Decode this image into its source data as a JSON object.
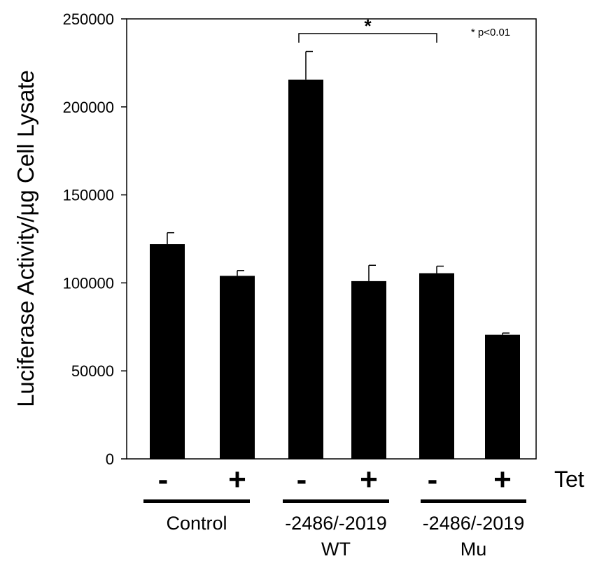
{
  "chart_data": {
    "type": "bar",
    "ylabel": "Luciferase Activity/µg Cell Lysate",
    "ylim": [
      0,
      250000
    ],
    "yticks": [
      0,
      50000,
      100000,
      150000,
      200000,
      250000
    ],
    "ytick_labels": [
      "0",
      "50000",
      "100000",
      "150000",
      "200000",
      "250000"
    ],
    "categories": [
      "-",
      "+",
      "-",
      "+",
      "-",
      "+"
    ],
    "values": [
      122000,
      104000,
      215500,
      101000,
      105500,
      70500
    ],
    "errors": [
      6500,
      3000,
      16000,
      9000,
      4000,
      1000
    ],
    "bar_color": "#000000",
    "tet_label": "Tet",
    "groups": [
      {
        "label_lines": [
          "Control"
        ],
        "bars": [
          0,
          1
        ]
      },
      {
        "label_lines": [
          "-2486/-2019",
          "WT"
        ],
        "bars": [
          2,
          3
        ]
      },
      {
        "label_lines": [
          "-2486/-2019",
          "Mu"
        ],
        "bars": [
          4,
          5
        ]
      }
    ],
    "significance": {
      "from_bar": 2,
      "to_bar": 4,
      "marker": "*",
      "note": "* p<0.01"
    }
  }
}
